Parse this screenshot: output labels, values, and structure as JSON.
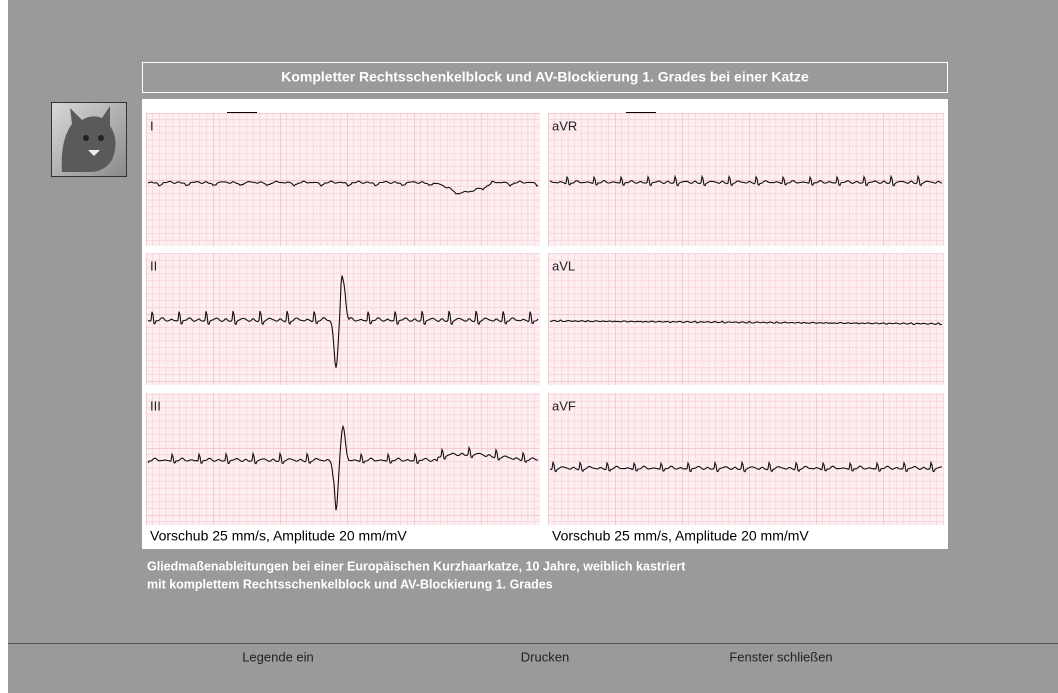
{
  "title": "Kompletter Rechtsschenkelblock und AV-Blockierung 1. Grades bei einer Katze",
  "leads": [
    {
      "label": "I"
    },
    {
      "label": "II"
    },
    {
      "label": "III"
    },
    {
      "label": "aVR"
    },
    {
      "label": "aVL"
    },
    {
      "label": "aVF"
    }
  ],
  "panel_footers": [
    "Vorschub 25 mm/s, Amplitude 20 mm/mV",
    "Vorschub 25 mm/s, Amplitude 20 mm/mV"
  ],
  "caption": [
    "Gliedmaßenableitungen bei einer Europäischen Kurzhaarkatze, 10 Jahre, weiblich kastriert",
    "mit komplettem Rechtsschenkelblock und AV-Blockierung 1. Grades"
  ],
  "buttons": [
    "Legende ein",
    "Drucken",
    "Fenster schließen"
  ]
}
